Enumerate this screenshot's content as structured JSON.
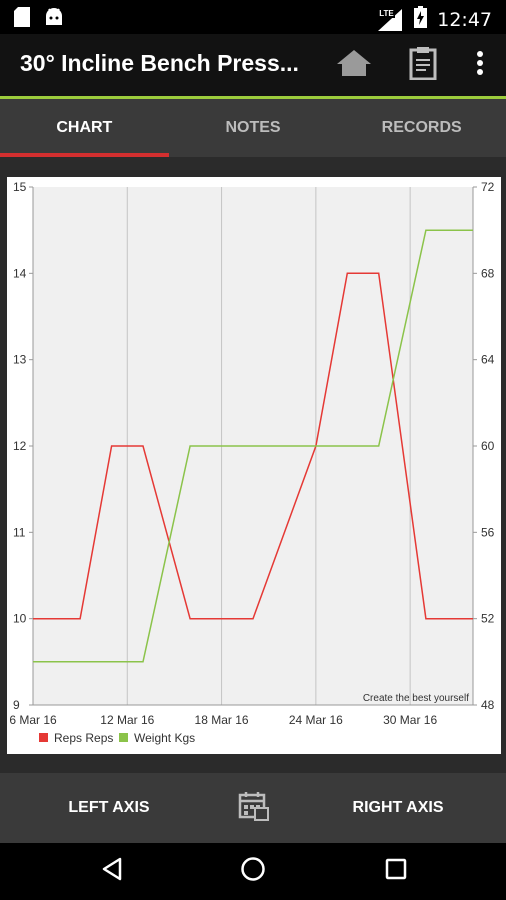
{
  "status_bar": {
    "time": "12:47",
    "network": "LTE"
  },
  "app_bar": {
    "title": "30° Incline Bench Press..."
  },
  "tabs": [
    {
      "label": "CHART",
      "active": true
    },
    {
      "label": "NOTES",
      "active": false
    },
    {
      "label": "RECORDS",
      "active": false
    }
  ],
  "chart_data": {
    "type": "line",
    "x_ticks": [
      "6 Mar 16",
      "12 Mar 16",
      "18 Mar 16",
      "24 Mar 16",
      "30 Mar 16"
    ],
    "x_tick_days": [
      6,
      12,
      18,
      24,
      30
    ],
    "x_range_days": [
      6,
      34
    ],
    "left_axis": {
      "range": [
        9,
        15
      ],
      "ticks": [
        "9",
        "10",
        "11",
        "12",
        "13",
        "14",
        "15"
      ]
    },
    "right_axis": {
      "range": [
        48,
        72
      ],
      "ticks": [
        "48",
        "52",
        "56",
        "60",
        "64",
        "68",
        "72"
      ]
    },
    "series": [
      {
        "name": "Reps Reps",
        "axis": "left",
        "color": "#e53935",
        "points": [
          [
            6,
            10
          ],
          [
            9,
            10
          ],
          [
            11,
            12
          ],
          [
            13,
            12
          ],
          [
            16,
            10
          ],
          [
            20,
            10
          ],
          [
            24,
            12
          ],
          [
            26,
            14
          ],
          [
            28,
            14
          ],
          [
            31,
            10
          ],
          [
            34,
            10
          ]
        ]
      },
      {
        "name": "Weight Kgs",
        "axis": "right",
        "color": "#8bc34a",
        "points": [
          [
            6,
            50
          ],
          [
            13,
            50
          ],
          [
            16,
            60
          ],
          [
            28,
            60
          ],
          [
            31,
            70
          ],
          [
            34,
            70
          ]
        ]
      }
    ],
    "annotation": "Create the best yourself",
    "grid": "vertical",
    "legend_position": "bottom-left"
  },
  "bottom_bar": {
    "left_axis_label": "LEFT AXIS",
    "right_axis_label": "RIGHT AXIS"
  }
}
